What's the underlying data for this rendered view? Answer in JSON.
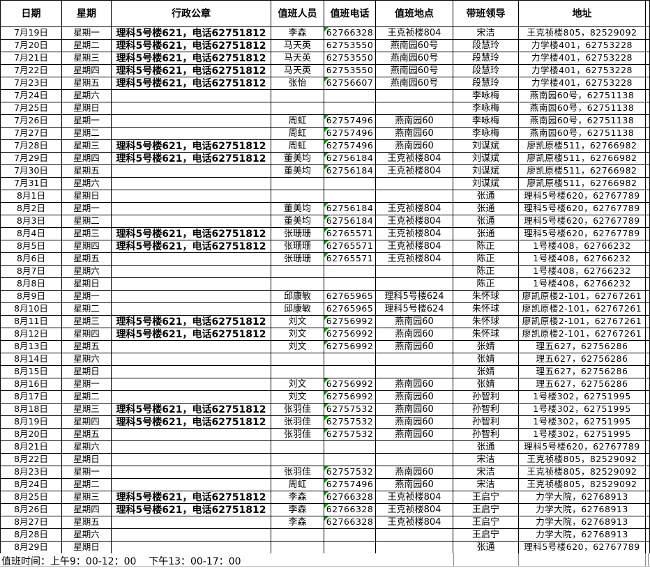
{
  "columns": [
    "日期",
    "星期",
    "行政公章",
    "值班人员",
    "值班电话",
    "值班地点",
    "带班领导",
    "地址"
  ],
  "footer": {
    "duty_hours": "值班时间：上午9：00-12：00    下午13：00-17：00"
  },
  "colors": {
    "error_indicator": "#00A000",
    "cell_border": "#000000",
    "footer_gridline": "#8a8a8a",
    "bottom_gridline": "#b9b9b9"
  },
  "rows": [
    {
      "date": "7月19日",
      "weekday": "星期一",
      "seal": "理科5号楼621，电话62751812",
      "person": "李森",
      "phone": "62766328",
      "flag": true,
      "location": "王克祯楼804",
      "leader": "宋洁",
      "address": "王克祯楼805，82529092"
    },
    {
      "date": "7月20日",
      "weekday": "星期二",
      "seal": "理科5号楼621，电话62751812",
      "person": "马天英",
      "phone": "62753550",
      "flag": false,
      "location": "燕南园60号",
      "leader": "段慧玲",
      "address": "力学楼401，62753228"
    },
    {
      "date": "7月21日",
      "weekday": "星期三",
      "seal": "理科5号楼621，电话62751812",
      "person": "马天英",
      "phone": "62753550",
      "flag": false,
      "location": "燕南园60号",
      "leader": "段慧玲",
      "address": "力学楼401，62753228"
    },
    {
      "date": "7月22日",
      "weekday": "星期四",
      "seal": "理科5号楼621，电话62751812",
      "person": "马天英",
      "phone": "62753550",
      "flag": false,
      "location": "燕南园60号",
      "leader": "段慧玲",
      "address": "力学楼401，62753228"
    },
    {
      "date": "7月23日",
      "weekday": "星期五",
      "seal": "理科5号楼621，电话62751812",
      "person": "张怡",
      "phone": "62756607",
      "flag": true,
      "location": "燕南园60号",
      "leader": "段慧玲",
      "address": "力学楼401，62753228"
    },
    {
      "date": "7月24日",
      "weekday": "星期六",
      "seal": "",
      "person": "",
      "phone": "",
      "flag": false,
      "location": "",
      "leader": "李咏梅",
      "address": "燕南园60号，62751138"
    },
    {
      "date": "7月25日",
      "weekday": "星期日",
      "seal": "",
      "person": "",
      "phone": "",
      "flag": false,
      "location": "",
      "leader": "李咏梅",
      "address": "燕南园60号，62751138"
    },
    {
      "date": "7月26日",
      "weekday": "星期一",
      "seal": "",
      "person": "周虹",
      "phone": "62757496",
      "flag": true,
      "location": "燕南园60",
      "leader": "李咏梅",
      "address": "燕南园60号，62751138"
    },
    {
      "date": "7月27日",
      "weekday": "星期二",
      "seal": "",
      "person": "周虹",
      "phone": "62757496",
      "flag": true,
      "location": "燕南园60",
      "leader": "李咏梅",
      "address": "燕南园60号，62751138"
    },
    {
      "date": "7月28日",
      "weekday": "星期三",
      "seal": "理科5号楼621，电话62751812",
      "person": "周虹",
      "phone": "62757496",
      "flag": true,
      "location": "燕南园60",
      "leader": "刘谋斌",
      "address": "廖凯原楼511，62766982"
    },
    {
      "date": "7月29日",
      "weekday": "星期四",
      "seal": "理科5号楼621，电话62751812",
      "person": "董美均",
      "phone": "62756184",
      "flag": true,
      "location": "王克祯楼804",
      "leader": "刘谋斌",
      "address": "廖凯原楼511，62766982"
    },
    {
      "date": "7月30日",
      "weekday": "星期五",
      "seal": "",
      "person": "董美均",
      "phone": "62756184",
      "flag": true,
      "location": "王克祯楼804",
      "leader": "刘谋斌",
      "address": "廖凯原楼511，62766982"
    },
    {
      "date": "7月31日",
      "weekday": "星期六",
      "seal": "",
      "person": "",
      "phone": "",
      "flag": false,
      "location": "",
      "leader": "刘谋斌",
      "address": "廖凯原楼511，62766982"
    },
    {
      "date": "8月1日",
      "weekday": "星期日",
      "seal": "",
      "person": "",
      "phone": "",
      "flag": false,
      "location": "",
      "leader": "张通",
      "address": "理科5号楼620，62767789"
    },
    {
      "date": "8月2日",
      "weekday": "星期一",
      "seal": "",
      "person": "董美均",
      "phone": "62756184",
      "flag": true,
      "location": "王克祯楼804",
      "leader": "张通",
      "address": "理科5号楼620，62767789"
    },
    {
      "date": "8月3日",
      "weekday": "星期二",
      "seal": "",
      "person": "董美均",
      "phone": "62756184",
      "flag": true,
      "location": "王克祯楼804",
      "leader": "张通",
      "address": "理科5号楼620，62767789"
    },
    {
      "date": "8月4日",
      "weekday": "星期三",
      "seal": "理科5号楼621，电话62751812",
      "person": "张珊珊",
      "phone": "62765571",
      "flag": true,
      "location": "王克祯楼804",
      "leader": "张通",
      "address": "理科5号楼620，62767789"
    },
    {
      "date": "8月5日",
      "weekday": "星期四",
      "seal": "理科5号楼621，电话62751812",
      "person": "张珊珊",
      "phone": "62765571",
      "flag": true,
      "location": "王克祯楼804",
      "leader": "陈正",
      "address": "1号楼408，62766232"
    },
    {
      "date": "8月6日",
      "weekday": "星期五",
      "seal": "",
      "person": "张珊珊",
      "phone": "62765571",
      "flag": true,
      "location": "王克祯楼804",
      "leader": "陈正",
      "address": "1号楼408，62766232"
    },
    {
      "date": "8月7日",
      "weekday": "星期六",
      "seal": "",
      "person": "",
      "phone": "",
      "flag": false,
      "location": "",
      "leader": "陈正",
      "address": "1号楼408，62766232"
    },
    {
      "date": "8月8日",
      "weekday": "星期日",
      "seal": "",
      "person": "",
      "phone": "",
      "flag": false,
      "location": "",
      "leader": "陈正",
      "address": "1号楼408，62766232"
    },
    {
      "date": "8月9日",
      "weekday": "星期一",
      "seal": "",
      "person": "邱康敏",
      "phone": "62765965",
      "flag": false,
      "location": "理科5号楼624",
      "leader": "朱怀球",
      "address": "廖凯原楼2-101，62767261"
    },
    {
      "date": "8月10日",
      "weekday": "星期二",
      "seal": "",
      "person": "邱康敏",
      "phone": "62765965",
      "flag": false,
      "location": "理科5号楼624",
      "leader": "朱怀球",
      "address": "廖凯原楼2-101，62767261"
    },
    {
      "date": "8月11日",
      "weekday": "星期三",
      "seal": "理科5号楼621，电话62751812",
      "person": "刘文",
      "phone": "62756992",
      "flag": true,
      "location": "燕南园60",
      "leader": "朱怀球",
      "address": "廖凯原楼2-101，62767261"
    },
    {
      "date": "8月12日",
      "weekday": "星期四",
      "seal": "理科5号楼621，电话62751812",
      "person": "刘文",
      "phone": "62756992",
      "flag": true,
      "location": "燕南园60",
      "leader": "朱怀球",
      "address": "廖凯原楼2-101，62767261"
    },
    {
      "date": "8月13日",
      "weekday": "星期五",
      "seal": "",
      "person": "刘文",
      "phone": "62756992",
      "flag": true,
      "location": "燕南园60",
      "leader": "张婧",
      "address": "理五627，62756286"
    },
    {
      "date": "8月14日",
      "weekday": "星期六",
      "seal": "",
      "person": "",
      "phone": "",
      "flag": false,
      "location": "",
      "leader": "张婧",
      "address": "理五627，62756286"
    },
    {
      "date": "8月15日",
      "weekday": "星期日",
      "seal": "",
      "person": "",
      "phone": "",
      "flag": false,
      "location": "",
      "leader": "张婧",
      "address": "理五627，62756286"
    },
    {
      "date": "8月16日",
      "weekday": "星期一",
      "seal": "",
      "person": "刘文",
      "phone": "62756992",
      "flag": true,
      "location": "燕南园60",
      "leader": "张婧",
      "address": "理五627，62756286"
    },
    {
      "date": "8月17日",
      "weekday": "星期二",
      "seal": "",
      "person": "刘文",
      "phone": "62756992",
      "flag": true,
      "location": "燕南园60",
      "leader": "孙智利",
      "address": "1号楼302，62751995"
    },
    {
      "date": "8月18日",
      "weekday": "星期三",
      "seal": "理科5号楼621，电话62751812",
      "person": "张羽佳",
      "phone": "62757532",
      "flag": true,
      "location": "燕南园60",
      "leader": "孙智利",
      "address": "1号楼302，62751995"
    },
    {
      "date": "8月19日",
      "weekday": "星期四",
      "seal": "理科5号楼621，电话62751812",
      "person": "张羽佳",
      "phone": "62757532",
      "flag": true,
      "location": "燕南园60",
      "leader": "孙智利",
      "address": "1号楼302，62751995"
    },
    {
      "date": "8月20日",
      "weekday": "星期五",
      "seal": "",
      "person": "张羽佳",
      "phone": "62757532",
      "flag": true,
      "location": "燕南园60",
      "leader": "孙智利",
      "address": "1号楼302，62751995"
    },
    {
      "date": "8月21日",
      "weekday": "星期六",
      "seal": "",
      "person": "",
      "phone": "",
      "flag": false,
      "location": "",
      "leader": "张通",
      "address": "理科5号楼620，62767789"
    },
    {
      "date": "8月22日",
      "weekday": "星期日",
      "seal": "",
      "person": "",
      "phone": "",
      "flag": false,
      "location": "",
      "leader": "宋洁",
      "address": "王克祯楼805，82529092"
    },
    {
      "date": "8月23日",
      "weekday": "星期一",
      "seal": "",
      "person": "张羽佳",
      "phone": "62757532",
      "flag": true,
      "location": "燕南园60",
      "leader": "宋洁",
      "address": "王克祯楼805，82529092"
    },
    {
      "date": "8月24日",
      "weekday": "星期二",
      "seal": "",
      "person": "周虹",
      "phone": "62757496",
      "flag": true,
      "location": "燕南园60",
      "leader": "宋洁",
      "address": "王克祯楼805，82529092"
    },
    {
      "date": "8月25日",
      "weekday": "星期三",
      "seal": "理科5号楼621，电话62751812",
      "person": "李森",
      "phone": "62766328",
      "flag": true,
      "location": "王克祯楼804",
      "leader": "王启宁",
      "address": "力学大院，62768913"
    },
    {
      "date": "8月26日",
      "weekday": "星期四",
      "seal": "理科5号楼621，电话62751812",
      "person": "李森",
      "phone": "62766328",
      "flag": true,
      "location": "王克祯楼804",
      "leader": "王启宁",
      "address": "力学大院，62768913"
    },
    {
      "date": "8月27日",
      "weekday": "星期五",
      "seal": "",
      "person": "李森",
      "phone": "62766328",
      "flag": true,
      "location": "王克祯楼804",
      "leader": "王启宁",
      "address": "力学大院，62768913"
    },
    {
      "date": "8月28日",
      "weekday": "星期六",
      "seal": "",
      "person": "",
      "phone": "",
      "flag": false,
      "location": "",
      "leader": "王启宁",
      "address": "力学大院，62768913"
    },
    {
      "date": "8月29日",
      "weekday": "星期日",
      "seal": "",
      "person": "",
      "phone": "",
      "flag": false,
      "location": "",
      "leader": "张通",
      "address": "理科5号楼620，62767789"
    }
  ]
}
